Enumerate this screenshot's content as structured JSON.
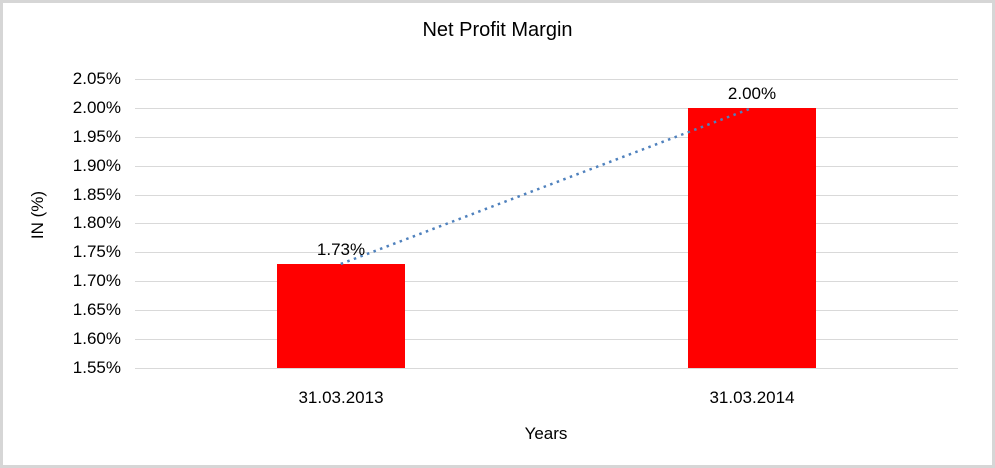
{
  "frame": {
    "border_color": "#d6d6d6",
    "background_color": "#ffffff"
  },
  "chart_data": {
    "type": "bar",
    "title": "Net Profit Margin",
    "xlabel": "Years",
    "ylabel": "IN (%)",
    "categories": [
      "31.03.2013",
      "31.03.2014"
    ],
    "values": [
      1.73,
      2.0
    ],
    "value_labels": [
      "1.73%",
      "2.00%"
    ],
    "ytick_labels": [
      "2.05%",
      "2.00%",
      "1.95%",
      "1.90%",
      "1.85%",
      "1.80%",
      "1.75%",
      "1.70%",
      "1.65%",
      "1.60%",
      "1.55%"
    ],
    "ytick_values": [
      2.05,
      2.0,
      1.95,
      1.9,
      1.85,
      1.8,
      1.75,
      1.7,
      1.65,
      1.6,
      1.55
    ],
    "ylim": [
      1.55,
      2.05
    ],
    "grid": true,
    "legend": false,
    "bar_color": "#ff0000",
    "gridline_color": "#d9d9d9",
    "text_color": "#000000",
    "trendline": {
      "style": "dotted",
      "color": "#4f81bd",
      "from_value": 1.73,
      "to_value": 2.0
    }
  }
}
